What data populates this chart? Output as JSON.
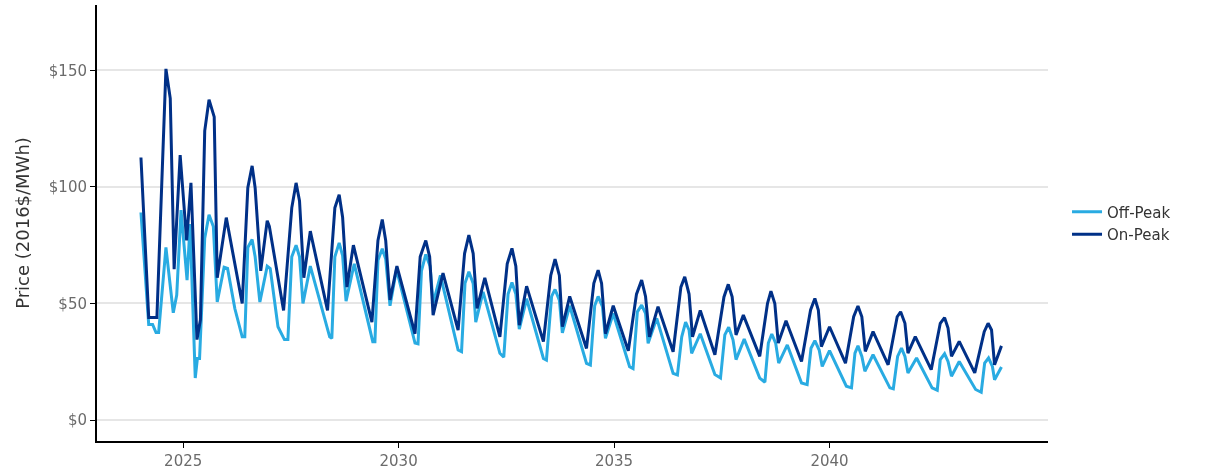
{
  "chart_data": {
    "type": "line",
    "ylabel": "Price (2016$/MWh)",
    "xlim": [
      2023.0,
      2045.07
    ],
    "xticks": [
      2025,
      2030,
      2035,
      2040
    ],
    "ylim": [
      -9,
      178
    ],
    "yticks": [
      {
        "value": 0,
        "label": "$0"
      },
      {
        "value": 50,
        "label": "$50"
      },
      {
        "value": 100,
        "label": "$100"
      },
      {
        "value": 150,
        "label": "$150"
      }
    ],
    "grid": "y",
    "legend": "right",
    "line_style": "solid",
    "series": [
      {
        "name": "Off-Peak",
        "color": "#29abe2",
        "x": [
          2024.02,
          2024.2,
          2024.29,
          2024.37,
          2024.43,
          2024.6,
          2024.77,
          2024.85,
          2024.95,
          2025.09,
          2025.16,
          2025.28,
          2025.33,
          2025.38,
          2025.5,
          2025.6,
          2025.7,
          2025.79,
          2025.95,
          2026.03,
          2026.2,
          2026.37,
          2026.43,
          2026.5,
          2026.6,
          2026.67,
          2026.78,
          2026.95,
          2027.02,
          2027.2,
          2027.35,
          2027.43,
          2027.52,
          2027.62,
          2027.7,
          2027.78,
          2027.95,
          2028.4,
          2028.45,
          2028.52,
          2028.62,
          2028.7,
          2028.78,
          2028.97,
          2029.4,
          2029.45,
          2029.52,
          2029.62,
          2029.7,
          2029.8,
          2029.95,
          2030.38,
          2030.45,
          2030.53,
          2030.63,
          2030.73,
          2030.8,
          2030.97,
          2031.38,
          2031.46,
          2031.54,
          2031.63,
          2031.73,
          2031.79,
          2031.96,
          2032.35,
          2032.44,
          2032.54,
          2032.63,
          2032.72,
          2032.8,
          2032.97,
          2033.36,
          2033.43,
          2033.55,
          2033.63,
          2033.73,
          2033.8,
          2033.97,
          2034.36,
          2034.45,
          2034.55,
          2034.63,
          2034.73,
          2034.8,
          2034.98,
          2035.36,
          2035.44,
          2035.54,
          2035.64,
          2035.73,
          2035.79,
          2035.99,
          2036.37,
          2036.47,
          2036.57,
          2036.66,
          2036.74,
          2036.8,
          2037.0,
          2037.34,
          2037.47,
          2037.57,
          2037.66,
          2037.76,
          2037.83,
          2038.02,
          2038.38,
          2038.5,
          2038.58,
          2038.66,
          2038.75,
          2038.82,
          2039.02,
          2039.35,
          2039.48,
          2039.57,
          2039.66,
          2039.76,
          2039.83,
          2040.0,
          2040.39,
          2040.51,
          2040.59,
          2040.66,
          2040.75,
          2040.82,
          2041.01,
          2041.4,
          2041.48,
          2041.58,
          2041.67,
          2041.75,
          2041.82,
          2042.02,
          2042.38,
          2042.5,
          2042.57,
          2042.67,
          2042.75,
          2042.83,
          2043.01,
          2043.39,
          2043.52,
          2043.6,
          2043.69,
          2043.78,
          2043.83,
          2043.99
        ],
        "values": [
          89,
          41,
          41,
          37.5,
          37.5,
          74,
          46,
          53.6,
          90,
          60,
          84,
          18,
          26.4,
          26.4,
          78,
          88,
          83,
          50.6,
          65.5,
          65,
          47.7,
          35.7,
          35.7,
          74,
          77.4,
          70,
          50.6,
          66,
          65,
          40,
          34.5,
          34.5,
          70,
          75,
          70,
          50,
          66,
          35.7,
          35,
          70,
          76,
          70.5,
          51,
          67,
          33.6,
          33.6,
          68.5,
          73.5,
          69,
          49,
          64.6,
          33,
          32.7,
          64,
          71,
          66,
          50,
          62,
          30,
          29.3,
          58.6,
          63.6,
          58.6,
          42,
          55,
          28.6,
          27,
          54,
          59,
          54,
          39,
          52,
          26.4,
          25.7,
          53,
          56,
          51.4,
          37.4,
          49,
          24.3,
          23.6,
          49,
          53,
          48.6,
          35,
          45.7,
          22.9,
          22.1,
          46.4,
          49.3,
          45.7,
          32.9,
          43.6,
          20,
          19.3,
          35.7,
          42,
          38.6,
          28.6,
          37,
          19.5,
          18,
          36.5,
          39.8,
          34.4,
          25.9,
          34.7,
          18,
          16.2,
          33,
          36.9,
          33,
          24.4,
          32.2,
          15.9,
          15.2,
          30.8,
          34,
          30,
          23,
          29.8,
          14.5,
          13.8,
          28.7,
          31.8,
          27.3,
          20.9,
          28,
          13.8,
          13.4,
          27.3,
          30.8,
          27.3,
          20.2,
          26.6,
          13.8,
          12.8,
          25.9,
          28.4,
          25.1,
          18.8,
          25.1,
          13.1,
          11.9,
          24.4,
          26.6,
          23,
          17.3,
          22.7
        ]
      },
      {
        "name": "On-Peak",
        "color": "#003087",
        "x": [
          2024.02,
          2024.2,
          2024.39,
          2024.6,
          2024.7,
          2024.79,
          2024.93,
          2025.08,
          2025.18,
          2025.32,
          2025.4,
          2025.5,
          2025.6,
          2025.72,
          2025.79,
          2026.0,
          2026.37,
          2026.5,
          2026.6,
          2026.67,
          2026.8,
          2026.95,
          2027.0,
          2027.33,
          2027.52,
          2027.62,
          2027.7,
          2027.8,
          2027.95,
          2028.35,
          2028.52,
          2028.62,
          2028.7,
          2028.8,
          2028.95,
          2029.38,
          2029.52,
          2029.62,
          2029.7,
          2029.8,
          2029.96,
          2030.38,
          2030.5,
          2030.63,
          2030.72,
          2030.8,
          2031.03,
          2031.38,
          2031.53,
          2031.63,
          2031.73,
          2031.82,
          2032.0,
          2032.35,
          2032.52,
          2032.63,
          2032.72,
          2032.8,
          2032.97,
          2033.36,
          2033.53,
          2033.63,
          2033.73,
          2033.8,
          2033.97,
          2034.36,
          2034.53,
          2034.63,
          2034.71,
          2034.8,
          2034.98,
          2035.33,
          2035.52,
          2035.64,
          2035.73,
          2035.82,
          2036.02,
          2036.37,
          2036.55,
          2036.64,
          2036.74,
          2036.82,
          2037.0,
          2037.34,
          2037.55,
          2037.65,
          2037.74,
          2037.83,
          2038.0,
          2038.38,
          2038.56,
          2038.64,
          2038.73,
          2038.81,
          2038.99,
          2039.35,
          2039.56,
          2039.66,
          2039.74,
          2039.81,
          2040.0,
          2040.37,
          2040.56,
          2040.66,
          2040.75,
          2040.83,
          2041.01,
          2041.36,
          2041.57,
          2041.65,
          2041.75,
          2041.82,
          2041.99,
          2042.36,
          2042.57,
          2042.67,
          2042.75,
          2042.83,
          2043.01,
          2043.37,
          2043.59,
          2043.68,
          2043.76,
          2043.83,
          2043.99
        ],
        "values": [
          112.6,
          44,
          44,
          150.6,
          138,
          64.7,
          113.6,
          77,
          101.7,
          34.5,
          43,
          124,
          137.4,
          130,
          61,
          86.8,
          50,
          99.6,
          109,
          99.6,
          64,
          85.5,
          83,
          47,
          91,
          101.7,
          94,
          61,
          81,
          47,
          91,
          96.6,
          87,
          57,
          75,
          42,
          77,
          86,
          77,
          51.5,
          66,
          37,
          70,
          77,
          70,
          45,
          63,
          38.6,
          71.4,
          79.3,
          71.4,
          47.9,
          61,
          35.7,
          67,
          73.6,
          66,
          40.7,
          57.4,
          33.6,
          62,
          69,
          62,
          40,
          53,
          30.7,
          58.6,
          64.3,
          58.6,
          37,
          49,
          29.7,
          54,
          60,
          53,
          35.7,
          48.6,
          29.3,
          57,
          61.4,
          54,
          35.7,
          47,
          28,
          52.8,
          58.2,
          52.8,
          36.5,
          45,
          27.3,
          50,
          55.3,
          50,
          33,
          42.6,
          25.1,
          47.2,
          52.1,
          47.2,
          31.5,
          40,
          24.4,
          44.3,
          48.9,
          44.3,
          29.4,
          37.9,
          23.7,
          44.3,
          46.4,
          41.5,
          28.7,
          35.8,
          21.6,
          41.5,
          43.9,
          39.4,
          27.3,
          33.7,
          20.2,
          37.9,
          41.5,
          38.6,
          23.7,
          31.8
        ]
      }
    ]
  }
}
